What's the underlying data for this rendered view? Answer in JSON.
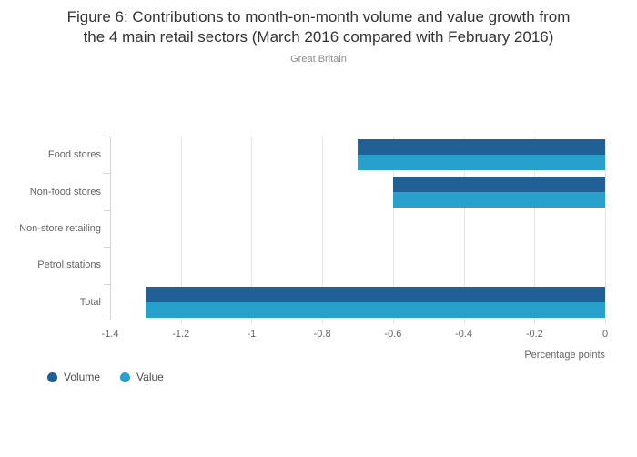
{
  "header": {
    "title_line1": "Figure 6: Contributions to month-on-month volume and value growth from",
    "title_line2": "the 4 main retail sectors (March 2016 compared with February 2016)",
    "subtitle": "Great Britain"
  },
  "legend": {
    "items": [
      {
        "label": "Volume",
        "color": "#206095"
      },
      {
        "label": "Value",
        "color": "#27A0CC"
      }
    ]
  },
  "chart_data": {
    "type": "bar",
    "orientation": "horizontal",
    "title": "Figure 6: Contributions to month-on-month volume and value growth from the 4 main retail sectors (March 2016 compared with February 2016)",
    "subtitle": "Great Britain",
    "categories": [
      "Food stores",
      "Non-food stores",
      "Non-store retailing",
      "Petrol stations",
      "Total"
    ],
    "series": [
      {
        "name": "Volume",
        "color": "#206095",
        "values": [
          -0.7,
          -0.6,
          0,
          0,
          -1.3
        ]
      },
      {
        "name": "Value",
        "color": "#27A0CC",
        "values": [
          -0.7,
          -0.6,
          0,
          0,
          -1.3
        ]
      }
    ],
    "xlabel": "Percentage points",
    "xlim": [
      -1.4,
      0
    ],
    "xticks": [
      {
        "value": -1.4,
        "label": "-1.4"
      },
      {
        "value": -1.2,
        "label": "-1.2"
      },
      {
        "value": -1.0,
        "label": "-1"
      },
      {
        "value": -0.8,
        "label": "-0.8"
      },
      {
        "value": -0.6,
        "label": "-0.6"
      },
      {
        "value": -0.4,
        "label": "-0.4"
      },
      {
        "value": -0.2,
        "label": "-0.2"
      },
      {
        "value": 0,
        "label": "0"
      }
    ],
    "grid": true,
    "legend_position": "bottom-left",
    "colors": {
      "grid": "#e6e6e6",
      "axis_line": "#ccd6eb",
      "title_text": "#333333",
      "muted_text": "#666666"
    }
  }
}
